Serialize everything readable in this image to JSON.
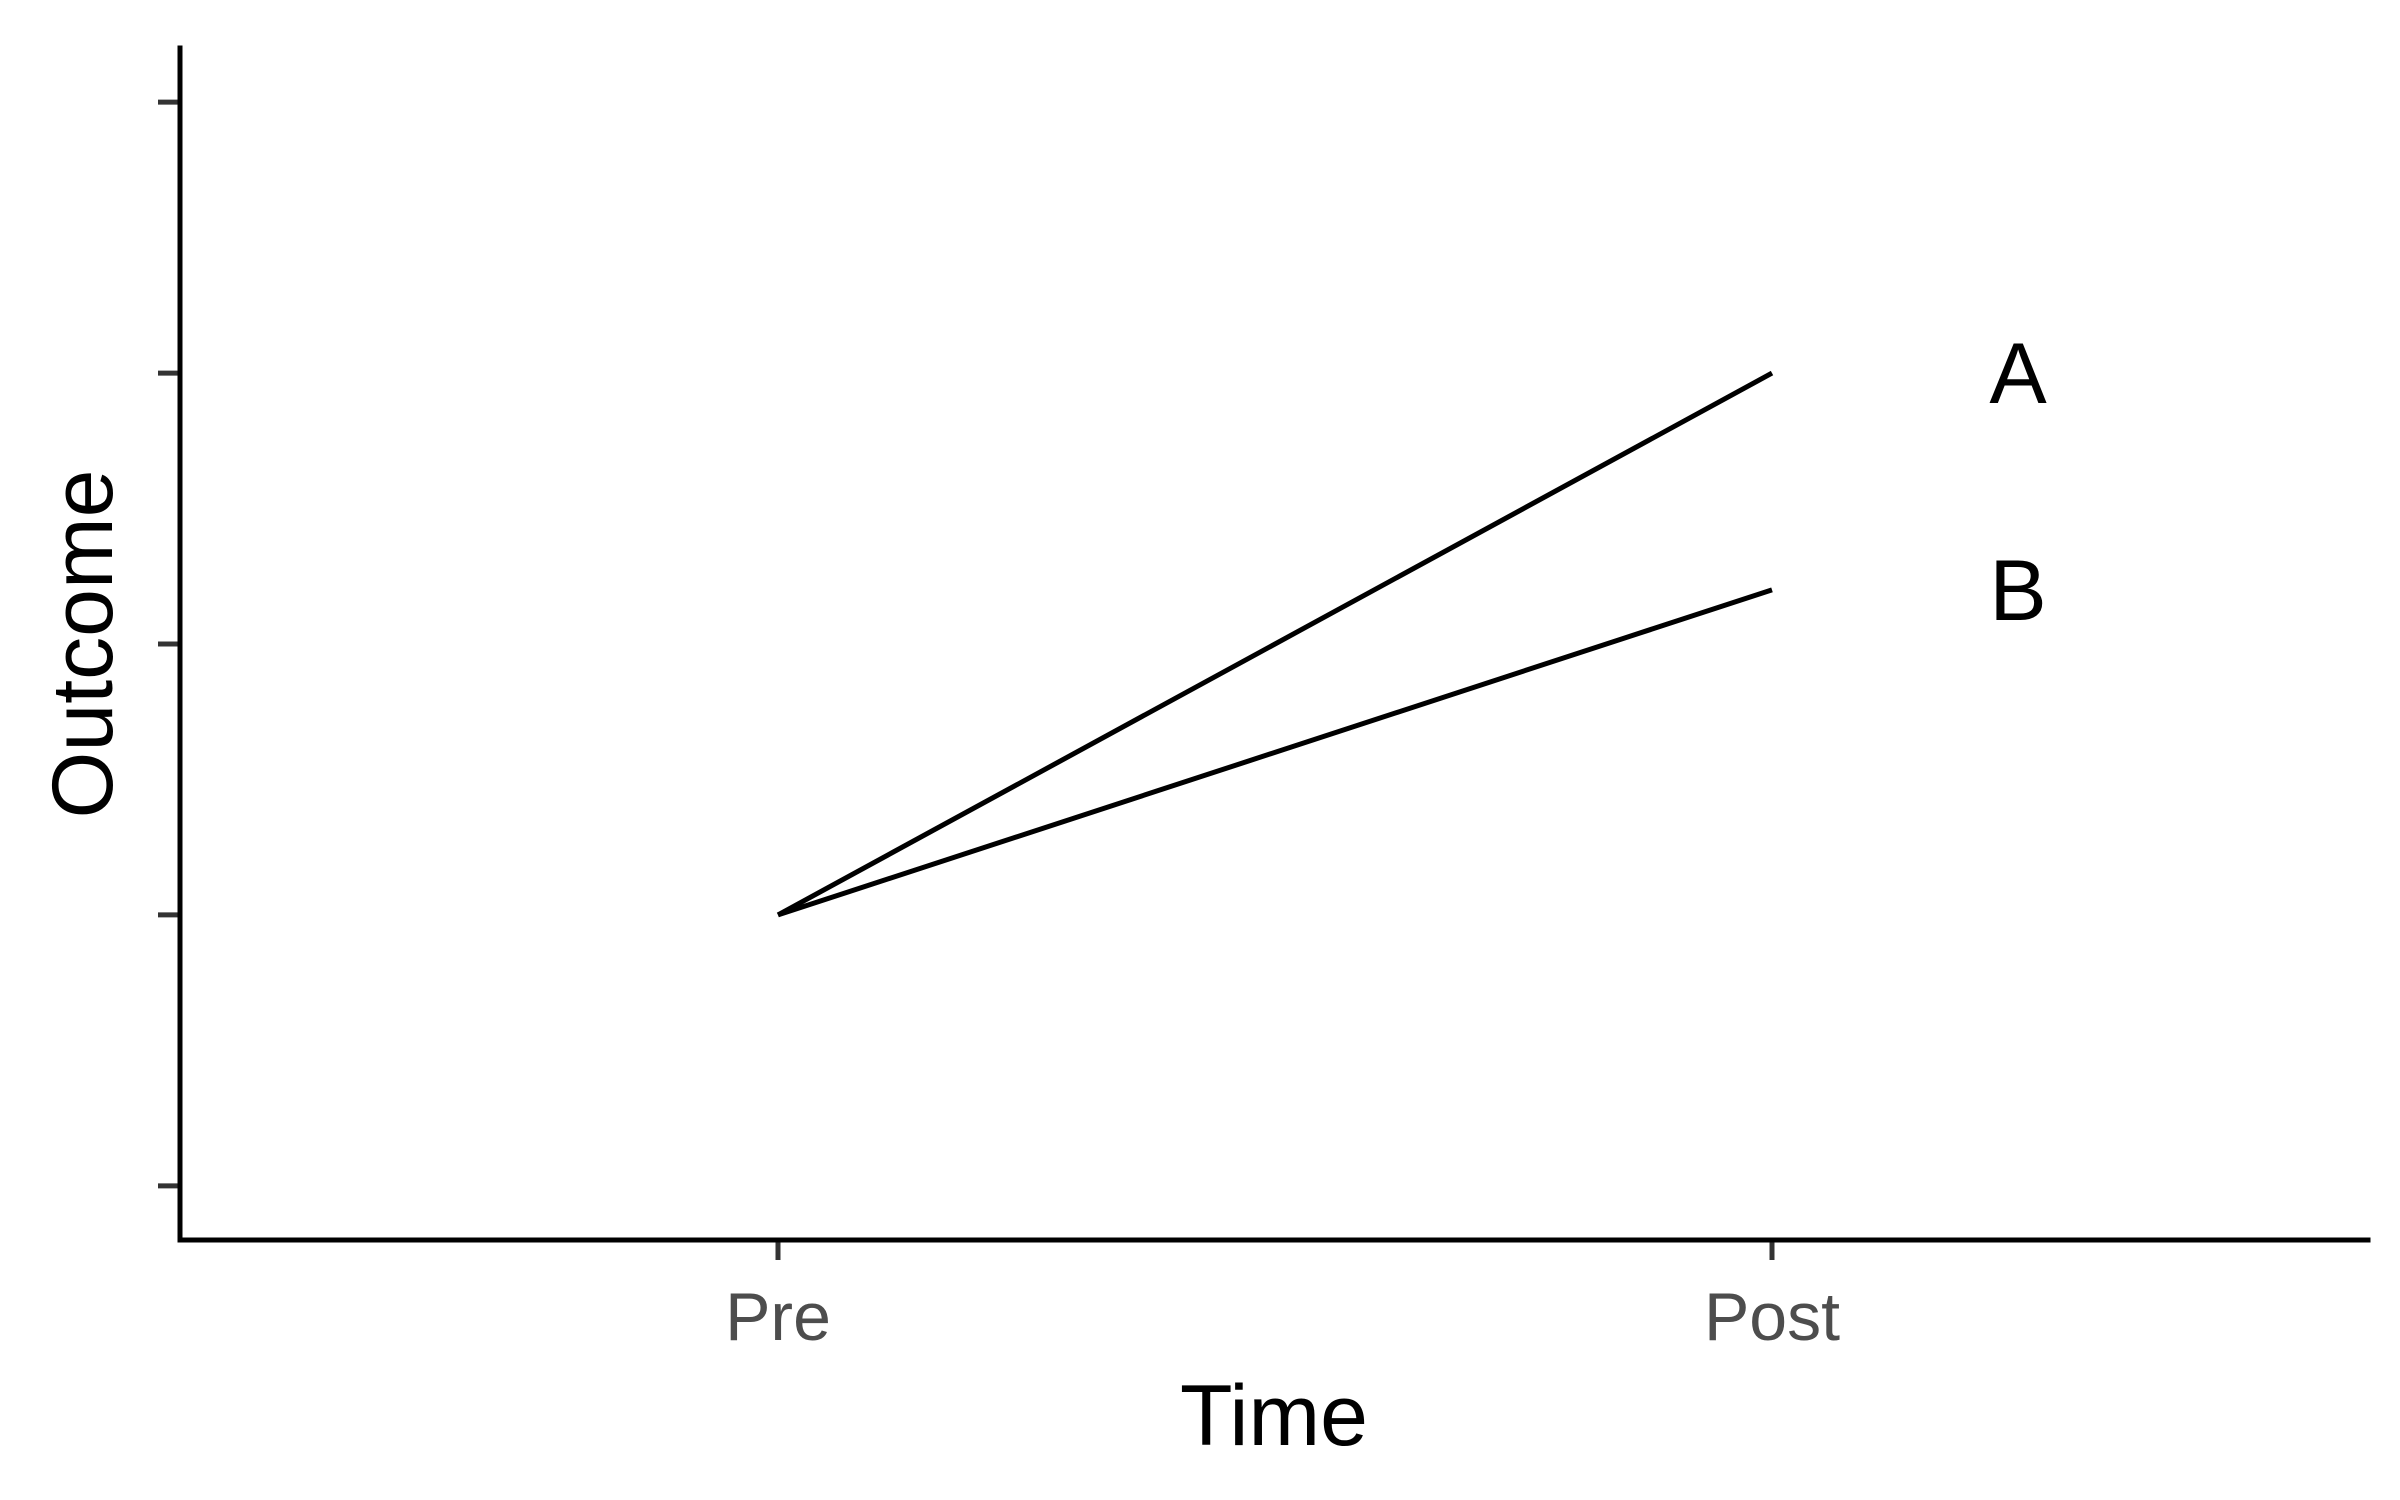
{
  "chart_data": {
    "type": "line",
    "title": "",
    "xlabel": "Time",
    "ylabel": "Outcome",
    "categories": [
      "Pre",
      "Post"
    ],
    "ylim": [
      0.8,
      5.2
    ],
    "yticks": [
      1,
      2,
      3,
      4,
      5
    ],
    "y_tick_labels_shown": false,
    "grid": false,
    "legend": "direct labels at right of line ends",
    "series": [
      {
        "name": "A",
        "values": [
          2,
          4
        ]
      },
      {
        "name": "B",
        "values": [
          2,
          3.2
        ]
      }
    ],
    "colors": {
      "lines": "#000000",
      "tick_labels": "#4d4d4d",
      "axis": "#000000"
    }
  }
}
